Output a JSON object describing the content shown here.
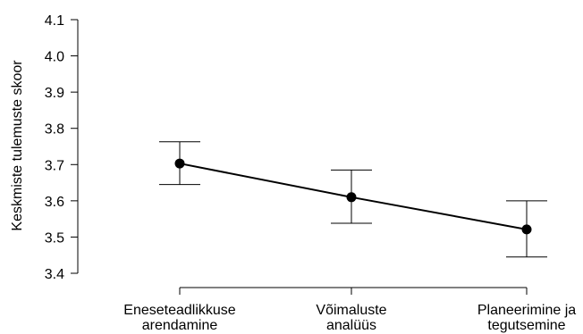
{
  "chart_data": {
    "type": "line",
    "title": "",
    "xlabel": "",
    "ylabel": "Keskmiste tulemuste skoor",
    "ylim": [
      3.4,
      4.1
    ],
    "yticks": [
      "3.4",
      "3.5",
      "3.6",
      "3.7",
      "3.8",
      "3.9",
      "4.0",
      "4.1"
    ],
    "categories": [
      [
        "Eneseteadlikkuse",
        "arendamine"
      ],
      [
        "Võimaluste",
        "analüüs"
      ],
      [
        "Planeerimine ja",
        "tegutsemine"
      ]
    ],
    "series": [
      {
        "values": [
          3.703,
          3.61,
          3.521
        ],
        "error_lower": [
          3.645,
          3.538,
          3.445
        ],
        "error_upper": [
          3.763,
          3.685,
          3.6
        ]
      }
    ],
    "grid": false,
    "legend": "none"
  }
}
